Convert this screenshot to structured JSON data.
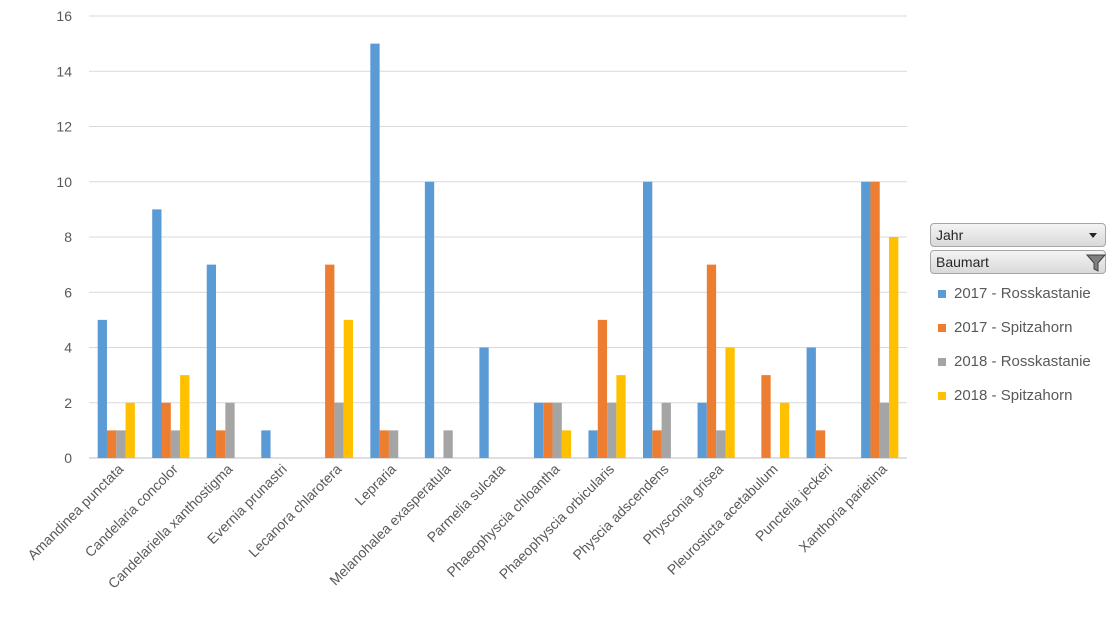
{
  "chart_data": {
    "type": "bar",
    "categories": [
      "Amandinea punctata",
      "Candelaria concolor",
      "Candelariella xanthostigma",
      "Evernia prunastri",
      "Lecanora chlarotera",
      "Lepraria",
      "Melanohalea exasperatula",
      "Parmelia sulcata",
      "Phaeophyscia chloantha",
      "Phaeophyscia orbicularis",
      "Physcia adscendens",
      "Physconia grisea",
      "Pleurosticta acetabulum",
      "Punctelia jeckeri",
      "Xanthoria parietina"
    ],
    "series": [
      {
        "name": "2017 - Rosskastanie",
        "color": "#5b9bd5",
        "values": [
          5,
          9,
          7,
          1,
          0,
          15,
          10,
          4,
          2,
          1,
          10,
          2,
          0,
          4,
          10
        ]
      },
      {
        "name": "2017 - Spitzahorn",
        "color": "#ed7d31",
        "values": [
          1,
          2,
          1,
          0,
          7,
          1,
          0,
          0,
          2,
          5,
          1,
          7,
          3,
          1,
          10
        ]
      },
      {
        "name": "2018 - Rosskastanie",
        "color": "#a5a5a5",
        "values": [
          1,
          1,
          2,
          0,
          2,
          1,
          1,
          0,
          2,
          2,
          2,
          1,
          0,
          0,
          2
        ]
      },
      {
        "name": "2018 - Spitzahorn",
        "color": "#ffc000",
        "values": [
          2,
          3,
          0,
          0,
          5,
          0,
          0,
          0,
          1,
          3,
          0,
          4,
          2,
          0,
          8
        ]
      }
    ],
    "ylim": [
      0,
      16
    ],
    "yticks": [
      0,
      2,
      4,
      6,
      8,
      10,
      12,
      14,
      16
    ],
    "grid": true,
    "legend_position": "right"
  },
  "pivot_fields": {
    "jahr_label": "Jahr",
    "baumart_label": "Baumart"
  }
}
